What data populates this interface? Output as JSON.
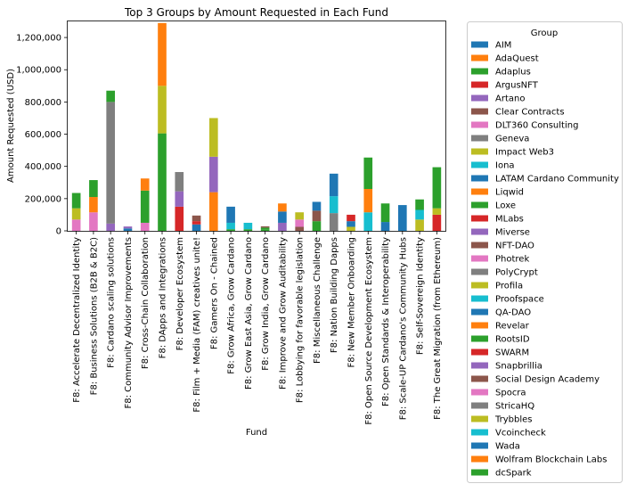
{
  "chart_data": {
    "type": "bar",
    "stacked": true,
    "title": "Top 3 Groups by Amount Requested in Each Fund",
    "xlabel": "Fund",
    "ylabel": "Amount Requested (USD)",
    "ylim": [
      0,
      1300000
    ],
    "yticks": [
      0,
      200000,
      400000,
      600000,
      800000,
      1000000,
      1200000
    ],
    "ytick_labels": [
      "0",
      "200,000",
      "400,000",
      "600,000",
      "800,000",
      "1,000,000",
      "1,200,000"
    ],
    "categories": [
      "F8: Accelerate Decentralized Identity",
      "F8: Business Solutions (B2B & B2C)",
      "F8: Cardano scaling solutions",
      "F8: Community Advisor Improvements",
      "F8: Cross-Chain Collaboration",
      "F8: DApps and Integrations",
      "F8: Developer Ecosystem",
      "F8: Film + Media (FAM) creatives unite!",
      "F8: Gamers On - Chained",
      "F8: Grow Africa, Grow Cardano",
      "F8: Grow East Asia, Grow Cardano",
      "F8: Grow India, Grow Cardano",
      "F8: Improve and Grow Auditability",
      "F8: Lobbying for favorable legislation",
      "F8: Miscellaneous Challenge",
      "F8: Nation Building Dapps",
      "F8: New Member Onboarding",
      "F8: Open Source Development Ecosystem",
      "F8: Open Standards & Interoperability",
      "F8: Scale-UP Cardano's Community Hubs",
      "F8: Self-Sovereign Identity",
      "F8: The Great Migration (from Ethereum)"
    ],
    "legend": {
      "title": "Group",
      "placement": "outside right",
      "entries": [
        {
          "name": "AIM",
          "color": "#1f77b4"
        },
        {
          "name": "AdaQuest",
          "color": "#ff7f0e"
        },
        {
          "name": "Adaplus",
          "color": "#2ca02c"
        },
        {
          "name": "ArgusNFT",
          "color": "#d62728"
        },
        {
          "name": "Artano",
          "color": "#9467bd"
        },
        {
          "name": "Clear Contracts",
          "color": "#8c564b"
        },
        {
          "name": "DLT360 Consulting",
          "color": "#e377c2"
        },
        {
          "name": "Geneva",
          "color": "#7f7f7f"
        },
        {
          "name": "Impact Web3",
          "color": "#bcbd22"
        },
        {
          "name": "Iona",
          "color": "#17becf"
        },
        {
          "name": "LATAM Cardano Community",
          "color": "#1f77b4"
        },
        {
          "name": "Liqwid",
          "color": "#ff7f0e"
        },
        {
          "name": "Loxe",
          "color": "#2ca02c"
        },
        {
          "name": "MLabs",
          "color": "#d62728"
        },
        {
          "name": "Miverse",
          "color": "#9467bd"
        },
        {
          "name": "NFT-DAO",
          "color": "#8c564b"
        },
        {
          "name": "Photrek",
          "color": "#e377c2"
        },
        {
          "name": "PolyCrypt",
          "color": "#7f7f7f"
        },
        {
          "name": "Profila",
          "color": "#bcbd22"
        },
        {
          "name": "Proofspace",
          "color": "#17becf"
        },
        {
          "name": "QA-DAO",
          "color": "#1f77b4"
        },
        {
          "name": "Revelar",
          "color": "#ff7f0e"
        },
        {
          "name": "RootsID",
          "color": "#2ca02c"
        },
        {
          "name": "SWARM",
          "color": "#d62728"
        },
        {
          "name": "Snapbrillia",
          "color": "#9467bd"
        },
        {
          "name": "Social Design Academy",
          "color": "#8c564b"
        },
        {
          "name": "Spocra",
          "color": "#e377c2"
        },
        {
          "name": "StricaHQ",
          "color": "#7f7f7f"
        },
        {
          "name": "Trybbles",
          "color": "#bcbd22"
        },
        {
          "name": "Vcoincheck",
          "color": "#17becf"
        },
        {
          "name": "Wada",
          "color": "#1f77b4"
        },
        {
          "name": "Wolfram Blockchain Labs",
          "color": "#ff7f0e"
        },
        {
          "name": "dcSpark",
          "color": "#2ca02c"
        }
      ]
    },
    "stacks": [
      [
        {
          "color": "#e377c2",
          "value": 70000
        },
        {
          "color": "#bcbd22",
          "value": 70000
        },
        {
          "color": "#2ca02c",
          "value": 95000
        }
      ],
      [
        {
          "color": "#e377c2",
          "value": 115000
        },
        {
          "color": "#ff7f0e",
          "value": 95000
        },
        {
          "color": "#2ca02c",
          "value": 105000
        }
      ],
      [
        {
          "color": "#9467bd",
          "value": 45000
        },
        {
          "color": "#7f7f7f",
          "value": 755000
        },
        {
          "color": "#2ca02c",
          "value": 70000
        }
      ],
      [
        {
          "color": "#1f77b4",
          "value": 15000
        },
        {
          "color": "#9467bd",
          "value": 12000
        }
      ],
      [
        {
          "color": "#e377c2",
          "value": 50000
        },
        {
          "color": "#2ca02c",
          "value": 200000
        },
        {
          "color": "#ff7f0e",
          "value": 75000
        }
      ],
      [
        {
          "color": "#2ca02c",
          "value": 605000
        },
        {
          "color": "#bcbd22",
          "value": 295000
        },
        {
          "color": "#ff7f0e",
          "value": 390000
        }
      ],
      [
        {
          "color": "#d62728",
          "value": 150000
        },
        {
          "color": "#9467bd",
          "value": 95000
        },
        {
          "color": "#7f7f7f",
          "value": 120000
        }
      ],
      [
        {
          "color": "#1f77b4",
          "value": 40000
        },
        {
          "color": "#d62728",
          "value": 20000
        },
        {
          "color": "#8c564b",
          "value": 35000
        }
      ],
      [
        {
          "color": "#ff7f0e",
          "value": 240000
        },
        {
          "color": "#9467bd",
          "value": 220000
        },
        {
          "color": "#bcbd22",
          "value": 240000
        }
      ],
      [
        {
          "color": "#2ca02c",
          "value": 10000
        },
        {
          "color": "#17becf",
          "value": 40000
        },
        {
          "color": "#1f77b4",
          "value": 100000
        }
      ],
      [
        {
          "color": "#2ca02c",
          "value": 10000
        },
        {
          "color": "#17becf",
          "value": 15000
        },
        {
          "color": "#17becf",
          "value": 25000
        }
      ],
      [
        {
          "color": "#2ca02c",
          "value": 10000
        },
        {
          "color": "#2ca02c",
          "value": 10000
        },
        {
          "color": "#8c564b",
          "value": 8000
        }
      ],
      [
        {
          "color": "#9467bd",
          "value": 50000
        },
        {
          "color": "#1f77b4",
          "value": 70000
        },
        {
          "color": "#ff7f0e",
          "value": 50000
        }
      ],
      [
        {
          "color": "#8c564b",
          "value": 25000
        },
        {
          "color": "#e377c2",
          "value": 45000
        },
        {
          "color": "#bcbd22",
          "value": 45000
        }
      ],
      [
        {
          "color": "#2ca02c",
          "value": 60000
        },
        {
          "color": "#8c564b",
          "value": 65000
        },
        {
          "color": "#1f77b4",
          "value": 55000
        }
      ],
      [
        {
          "color": "#7f7f7f",
          "value": 110000
        },
        {
          "color": "#17becf",
          "value": 105000
        },
        {
          "color": "#1f77b4",
          "value": 140000
        }
      ],
      [
        {
          "color": "#bcbd22",
          "value": 25000
        },
        {
          "color": "#1f77b4",
          "value": 35000
        },
        {
          "color": "#d62728",
          "value": 40000
        }
      ],
      [
        {
          "color": "#17becf",
          "value": 115000
        },
        {
          "color": "#ff7f0e",
          "value": 145000
        },
        {
          "color": "#2ca02c",
          "value": 195000
        }
      ],
      [
        {
          "color": "#1f77b4",
          "value": 55000
        },
        {
          "color": "#2ca02c",
          "value": 115000
        }
      ],
      [
        {
          "color": "#1f77b4",
          "value": 160000
        }
      ],
      [
        {
          "color": "#bcbd22",
          "value": 70000
        },
        {
          "color": "#17becf",
          "value": 60000
        },
        {
          "color": "#2ca02c",
          "value": 65000
        }
      ],
      [
        {
          "color": "#d62728",
          "value": 100000
        },
        {
          "color": "#bcbd22",
          "value": 40000
        },
        {
          "color": "#2ca02c",
          "value": 255000
        }
      ]
    ]
  }
}
